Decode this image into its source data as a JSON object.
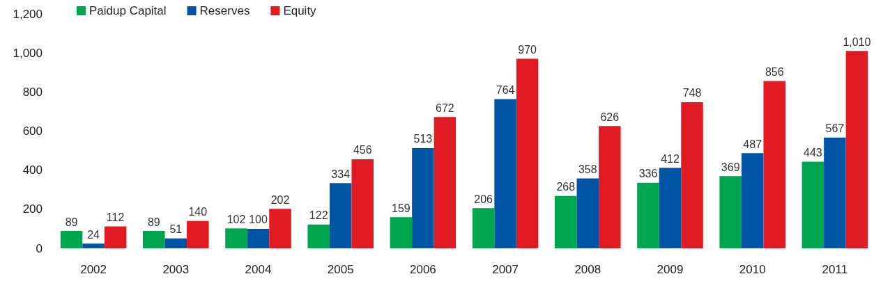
{
  "chart_data": {
    "type": "bar",
    "categories": [
      "2002",
      "2003",
      "2004",
      "2005",
      "2006",
      "2007",
      "2008",
      "2009",
      "2010",
      "2011"
    ],
    "series": [
      {
        "name": "Paidup Capital",
        "color": "#00a54f",
        "values": [
          89,
          89,
          102,
          122,
          159,
          206,
          268,
          336,
          369,
          443
        ]
      },
      {
        "name": "Reserves",
        "color": "#0054a4",
        "values": [
          24,
          51,
          100,
          334,
          513,
          764,
          358,
          412,
          487,
          567
        ]
      },
      {
        "name": "Equity",
        "color": "#e01b24",
        "values": [
          112,
          140,
          202,
          456,
          672,
          970,
          626,
          748,
          856,
          1010
        ],
        "value_labels": [
          "112",
          "140",
          "202",
          "456",
          "672",
          "970",
          "626",
          "748",
          "856",
          "1,010"
        ]
      }
    ],
    "data_labels": true,
    "ylim": [
      0,
      1200
    ],
    "yticks": [
      0,
      {
        "value": 200,
        "label": "200"
      },
      400,
      600,
      800,
      {
        "value": 1000,
        "label": "1,000"
      },
      {
        "value": 1200,
        "label": "1,200"
      }
    ],
    "grid": false,
    "legend": "top left"
  }
}
